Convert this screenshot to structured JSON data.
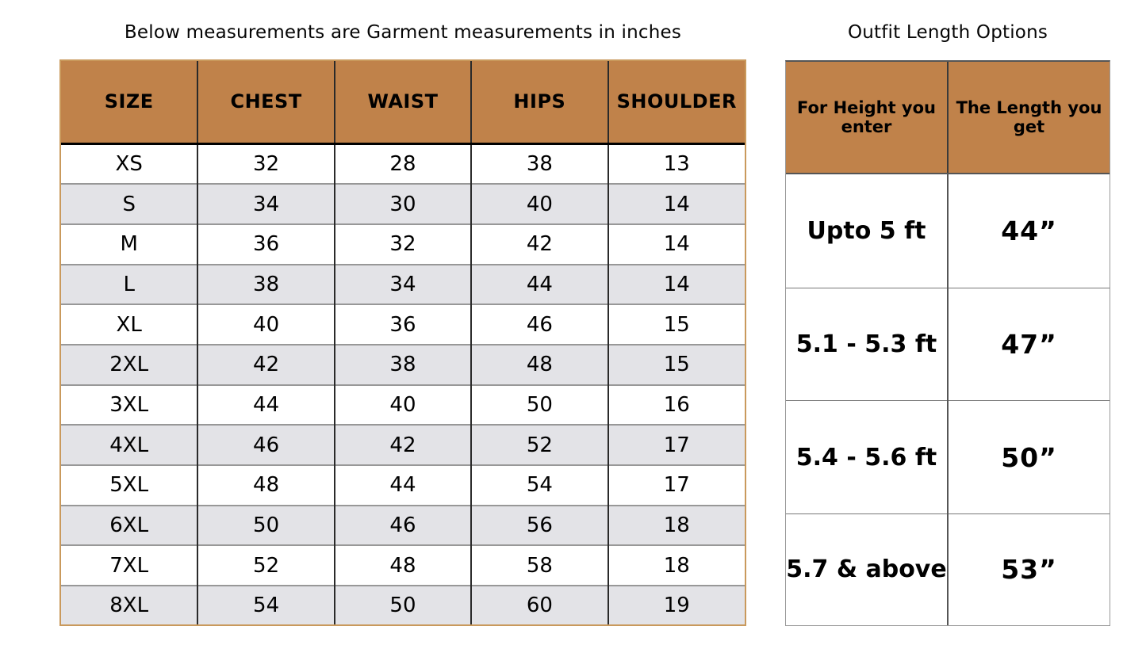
{
  "colors": {
    "header_bg": "#c0824a",
    "row_alt_bg": "#e3e3e7",
    "row_bg": "#ffffff",
    "left_table_outer_border": "#c9995c",
    "dark_grid_line": "#2a2a2a",
    "light_grid_line": "#989898",
    "text": "#000000"
  },
  "size_chart": {
    "title": "Below measurements are Garment measurements in inches",
    "columns": [
      "SIZE",
      "CHEST",
      "WAIST",
      "HIPS",
      "SHOULDER"
    ],
    "rows": [
      [
        "XS",
        "32",
        "28",
        "38",
        "13"
      ],
      [
        "S",
        "34",
        "30",
        "40",
        "14"
      ],
      [
        "M",
        "36",
        "32",
        "42",
        "14"
      ],
      [
        "L",
        "38",
        "34",
        "44",
        "14"
      ],
      [
        "XL",
        "40",
        "36",
        "46",
        "15"
      ],
      [
        "2XL",
        "42",
        "38",
        "48",
        "15"
      ],
      [
        "3XL",
        "44",
        "40",
        "50",
        "16"
      ],
      [
        "4XL",
        "46",
        "42",
        "52",
        "17"
      ],
      [
        "5XL",
        "48",
        "44",
        "54",
        "17"
      ],
      [
        "6XL",
        "50",
        "46",
        "56",
        "18"
      ],
      [
        "7XL",
        "52",
        "48",
        "58",
        "18"
      ],
      [
        "8XL",
        "54",
        "50",
        "60",
        "19"
      ]
    ]
  },
  "length_options": {
    "title": "Outfit Length Options",
    "columns": [
      "For Height you enter",
      "The Length you get"
    ],
    "rows": [
      [
        "Upto 5 ft",
        "44”"
      ],
      [
        "5.1 - 5.3 ft",
        "47”"
      ],
      [
        "5.4 - 5.6 ft",
        "50”"
      ],
      [
        "5.7 & above",
        "53”"
      ]
    ]
  }
}
